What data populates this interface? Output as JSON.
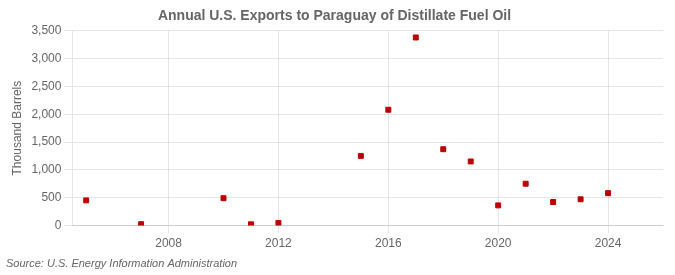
{
  "chart_data": {
    "type": "scatter",
    "title": "Annual U.S. Exports to Paraguay of Distillate Fuel Oil",
    "ylabel": "Thousand Barrels",
    "source": "Source: U.S. Energy Information Administration",
    "x": [
      2005,
      2007,
      2010,
      2011,
      2012,
      2015,
      2016,
      2017,
      2018,
      2019,
      2020,
      2021,
      2022,
      2023,
      2024
    ],
    "values": [
      450,
      22,
      490,
      20,
      45,
      1250,
      2080,
      3380,
      1370,
      1150,
      360,
      750,
      420,
      470,
      580
    ],
    "color": "#bb0000",
    "marker": "square",
    "xlim": [
      2004.5,
      2026
    ],
    "xticks": [
      2008,
      2012,
      2016,
      2020,
      2024
    ],
    "ylim": [
      0,
      3500
    ],
    "yticks": [
      0,
      500,
      {
        "value": 1000,
        "label": "1,000"
      },
      {
        "value": 1500,
        "label": "1,500"
      },
      {
        "value": 2000,
        "label": "2,000"
      },
      {
        "value": 2500,
        "label": "2,500"
      },
      {
        "value": 3000,
        "label": "3,000"
      },
      {
        "value": 3500,
        "label": "3,500"
      }
    ],
    "grid": true
  }
}
